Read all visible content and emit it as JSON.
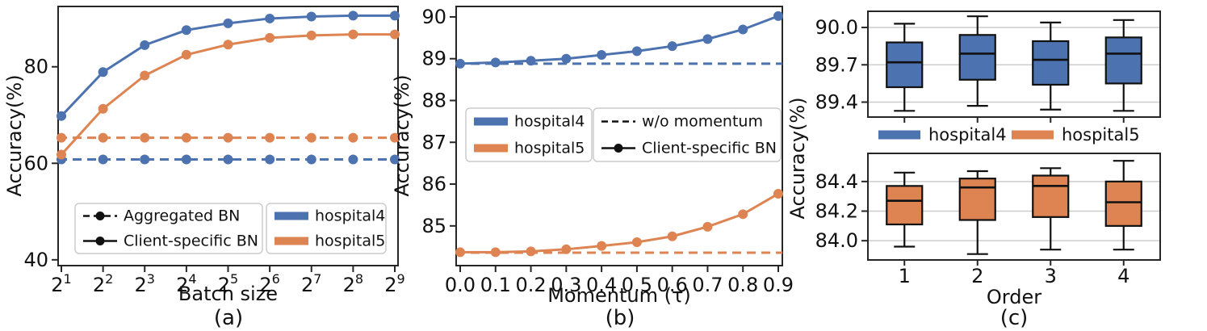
{
  "colors": {
    "hospital4": "#4C72B0",
    "hospital5": "#DD8452",
    "black": "#111111",
    "axis": "#262626",
    "grid": "#cccccc",
    "legend_border": "#cccccc",
    "background": "#ffffff"
  },
  "chart_data": [
    {
      "id": "a",
      "type": "line",
      "caption": "(a)",
      "xlabel": "Batch size",
      "ylabel": "Accuracy(%)",
      "x_tick_labels": [
        "2^1",
        "2^2",
        "2^3",
        "2^4",
        "2^5",
        "2^6",
        "2^7",
        "2^8",
        "2^9"
      ],
      "ylim": [
        38.8,
        92.5
      ],
      "grid": false,
      "yticks": [
        {
          "v": 40,
          "label": "40"
        },
        {
          "v": 60,
          "label": "60"
        },
        {
          "v": 80,
          "label": "80"
        }
      ],
      "series": [
        {
          "name": "hospital4 Aggregated BN",
          "color": "hospital4",
          "dash": true,
          "marker": true,
          "values": [
            60.8,
            60.8,
            60.8,
            60.8,
            60.8,
            60.8,
            60.8,
            60.8,
            60.8
          ]
        },
        {
          "name": "hospital5 Aggregated BN",
          "color": "hospital5",
          "dash": true,
          "marker": true,
          "values": [
            65.3,
            65.3,
            65.3,
            65.3,
            65.3,
            65.3,
            65.3,
            65.3,
            65.3
          ]
        },
        {
          "name": "hospital4 Client-specific BN",
          "color": "hospital4",
          "dash": false,
          "marker": true,
          "values": [
            69.8,
            78.9,
            84.5,
            87.6,
            89.0,
            90.0,
            90.4,
            90.6,
            90.6
          ]
        },
        {
          "name": "hospital5 Client-specific BN",
          "color": "hospital5",
          "dash": false,
          "marker": true,
          "values": [
            61.8,
            71.3,
            78.2,
            82.5,
            84.6,
            86.0,
            86.5,
            86.7,
            86.7
          ]
        }
      ],
      "legends": [
        {
          "position": "lower-left",
          "items": [
            {
              "label": "Aggregated BN",
              "swatch": "dash-dot",
              "color": "black"
            },
            {
              "label": "Client-specific BN",
              "swatch": "line-dot",
              "color": "black"
            }
          ]
        },
        {
          "position": "lower-right",
          "items": [
            {
              "label": "hospital4",
              "swatch": "thick",
              "color": "hospital4"
            },
            {
              "label": "hospital5",
              "swatch": "thick",
              "color": "hospital5"
            }
          ]
        }
      ]
    },
    {
      "id": "b",
      "type": "line",
      "caption": "(b)",
      "xlabel": "Momentum (τ)",
      "ylabel": "Accuracy(%)",
      "x_tick_labels": [
        "0.0",
        "0.1",
        "0.2",
        "0.3",
        "0.4",
        "0.5",
        "0.6",
        "0.7",
        "0.8",
        "0.9"
      ],
      "ylim": [
        84.05,
        90.25
      ],
      "grid": false,
      "yticks": [
        {
          "v": 85,
          "label": "85"
        },
        {
          "v": 86,
          "label": "86"
        },
        {
          "v": 87,
          "label": "87"
        },
        {
          "v": 88,
          "label": "88"
        },
        {
          "v": 89,
          "label": "89"
        },
        {
          "v": 90,
          "label": "90"
        }
      ],
      "series": [
        {
          "name": "hospital4 w/o momentum",
          "color": "hospital4",
          "dash": true,
          "marker": false,
          "values": [
            88.88,
            88.88
          ]
        },
        {
          "name": "hospital5 w/o momentum",
          "color": "hospital5",
          "dash": true,
          "marker": false,
          "values": [
            84.36,
            84.36
          ]
        },
        {
          "name": "hospital4 Client-specific BN",
          "color": "hospital4",
          "dash": false,
          "marker": true,
          "values": [
            88.88,
            88.91,
            88.95,
            89.0,
            89.09,
            89.18,
            89.3,
            89.47,
            89.7,
            90.02
          ]
        },
        {
          "name": "hospital5 Client-specific BN",
          "color": "hospital5",
          "dash": false,
          "marker": true,
          "values": [
            84.37,
            84.37,
            84.39,
            84.44,
            84.52,
            84.61,
            84.75,
            84.98,
            85.28,
            85.77
          ]
        }
      ],
      "legends": [
        {
          "position": "center-left",
          "items": [
            {
              "label": "hospital4",
              "swatch": "thick",
              "color": "hospital4"
            },
            {
              "label": "hospital5",
              "swatch": "thick",
              "color": "hospital5"
            }
          ]
        },
        {
          "position": "center-right",
          "items": [
            {
              "label": "w/o momentum",
              "swatch": "dash",
              "color": "black"
            },
            {
              "label": "Client-specific BN",
              "swatch": "line-dot",
              "color": "black"
            }
          ]
        }
      ]
    },
    {
      "id": "c",
      "type": "box",
      "caption": "(c)",
      "xlabel": "Order",
      "ylabel": "Accuracy(%)",
      "categories": [
        "1",
        "2",
        "3",
        "4"
      ],
      "legend": {
        "items": [
          {
            "label": "hospital4",
            "swatch": "thick",
            "color": "hospital4"
          },
          {
            "label": "hospital5",
            "swatch": "thick",
            "color": "hospital5"
          }
        ]
      },
      "subplots": [
        {
          "name": "hospital4",
          "color": "hospital4",
          "ylim": [
            89.28,
            90.13
          ],
          "grid": true,
          "yticks": [
            {
              "v": 89.4,
              "label": "89.4"
            },
            {
              "v": 89.7,
              "label": "89.7"
            },
            {
              "v": 90.0,
              "label": "90.0"
            }
          ],
          "boxes": [
            {
              "whislo": 89.33,
              "q1": 89.52,
              "med": 89.72,
              "q3": 89.88,
              "whishi": 90.03
            },
            {
              "whislo": 89.37,
              "q1": 89.58,
              "med": 89.79,
              "q3": 89.94,
              "whishi": 90.09
            },
            {
              "whislo": 89.34,
              "q1": 89.54,
              "med": 89.74,
              "q3": 89.89,
              "whishi": 90.04
            },
            {
              "whislo": 89.33,
              "q1": 89.55,
              "med": 89.79,
              "q3": 89.92,
              "whishi": 90.06
            }
          ]
        },
        {
          "name": "hospital5",
          "color": "hospital5",
          "ylim": [
            83.87,
            84.59
          ],
          "grid": true,
          "yticks": [
            {
              "v": 84.0,
              "label": "84.0"
            },
            {
              "v": 84.2,
              "label": "84.2"
            },
            {
              "v": 84.4,
              "label": "84.4"
            }
          ],
          "boxes": [
            {
              "whislo": 83.96,
              "q1": 84.11,
              "med": 84.27,
              "q3": 84.37,
              "whishi": 84.46
            },
            {
              "whislo": 83.91,
              "q1": 84.14,
              "med": 84.36,
              "q3": 84.42,
              "whishi": 84.47
            },
            {
              "whislo": 83.94,
              "q1": 84.16,
              "med": 84.37,
              "q3": 84.44,
              "whishi": 84.49
            },
            {
              "whislo": 83.94,
              "q1": 84.1,
              "med": 84.26,
              "q3": 84.4,
              "whishi": 84.54
            }
          ]
        }
      ]
    }
  ]
}
